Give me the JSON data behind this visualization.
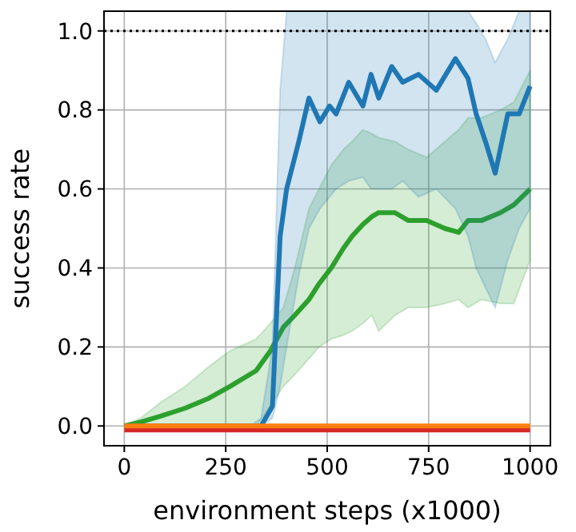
{
  "chart_data": {
    "type": "line",
    "xlabel": "environment steps (x1000)",
    "ylabel": "success rate",
    "xlim": [
      -50,
      1050
    ],
    "ylim": [
      -0.05,
      1.05
    ],
    "xticks": [
      0,
      250,
      500,
      750,
      1000
    ],
    "yticks": [
      {
        "value": 0,
        "label": "0.0"
      },
      {
        "value": 0.2,
        "label": "0.2"
      },
      {
        "value": 0.4,
        "label": "0.4"
      },
      {
        "value": 0.6,
        "label": "0.6"
      },
      {
        "value": 0.8,
        "label": "0.8"
      },
      {
        "value": 1,
        "label": "1.0"
      }
    ],
    "grid": true,
    "ref_lines": [
      {
        "axis": "y",
        "value": 1,
        "color": "#000000",
        "line_style": "dotted"
      }
    ],
    "series": [
      {
        "color": "#2ca02c",
        "x": [
          0,
          40,
          90,
          150,
          208,
          260,
          325,
          360,
          392,
          420,
          455,
          480,
          510,
          540,
          561,
          588,
          610,
          627,
          667,
          700,
          745,
          790,
          824,
          847,
          880,
          927,
          960,
          1000
        ],
        "values": [
          0,
          0.01,
          0.025,
          0.045,
          0.07,
          0.1,
          0.14,
          0.19,
          0.25,
          0.28,
          0.32,
          0.36,
          0.4,
          0.45,
          0.48,
          0.51,
          0.53,
          0.54,
          0.54,
          0.52,
          0.52,
          0.5,
          0.49,
          0.52,
          0.52,
          0.54,
          0.56,
          0.6
        ],
        "lower": [
          0,
          0,
          0,
          0,
          0,
          0,
          0,
          0.05,
          0.1,
          0.13,
          0.17,
          0.2,
          0.22,
          0.23,
          0.24,
          0.26,
          0.28,
          0.24,
          0.28,
          0.3,
          0.3,
          0.31,
          0.32,
          0.3,
          0.32,
          0.31,
          0.31,
          0.42
        ],
        "upper": [
          0,
          0.02,
          0.06,
          0.1,
          0.15,
          0.19,
          0.22,
          0.26,
          0.3,
          0.4,
          0.55,
          0.6,
          0.66,
          0.7,
          0.72,
          0.75,
          0.74,
          0.73,
          0.72,
          0.7,
          0.68,
          0.72,
          0.75,
          0.78,
          0.78,
          0.8,
          0.82,
          0.9
        ]
      },
      {
        "color": "#1f77b4",
        "x": [
          0,
          310,
          337,
          365,
          384,
          400,
          430,
          455,
          482,
          506,
          522,
          553,
          588,
          608,
          627,
          659,
          686,
          725,
          769,
          816,
          847,
          867,
          890,
          914,
          945,
          973,
          1000
        ],
        "values": [
          0,
          0,
          0,
          0.05,
          0.48,
          0.6,
          0.72,
          0.83,
          0.77,
          0.81,
          0.79,
          0.87,
          0.81,
          0.89,
          0.83,
          0.91,
          0.87,
          0.89,
          0.85,
          0.93,
          0.88,
          0.79,
          0.72,
          0.64,
          0.79,
          0.79,
          0.86
        ],
        "lower": [
          0,
          0,
          0,
          0.02,
          0.1,
          0.2,
          0.38,
          0.5,
          0.55,
          0.58,
          0.6,
          0.62,
          0.63,
          0.6,
          0.6,
          0.6,
          0.62,
          0.58,
          0.6,
          0.55,
          0.48,
          0.4,
          0.35,
          0.3,
          0.42,
          0.5,
          0.55
        ],
        "upper": [
          0,
          0,
          0.02,
          0.2,
          0.85,
          1.05,
          1.05,
          1.05,
          1.05,
          1.05,
          1.05,
          1.05,
          1.05,
          1.05,
          1.05,
          1.05,
          1.05,
          1.05,
          1.05,
          1.05,
          1.05,
          1.02,
          0.98,
          0.92,
          0.98,
          1.05,
          1.05
        ]
      },
      {
        "color": "#d62728",
        "x": [
          0,
          1000
        ],
        "values": [
          -0.01,
          -0.01
        ]
      },
      {
        "color": "#ff7f0e",
        "x": [
          0,
          1000
        ],
        "values": [
          0,
          0
        ]
      }
    ]
  }
}
